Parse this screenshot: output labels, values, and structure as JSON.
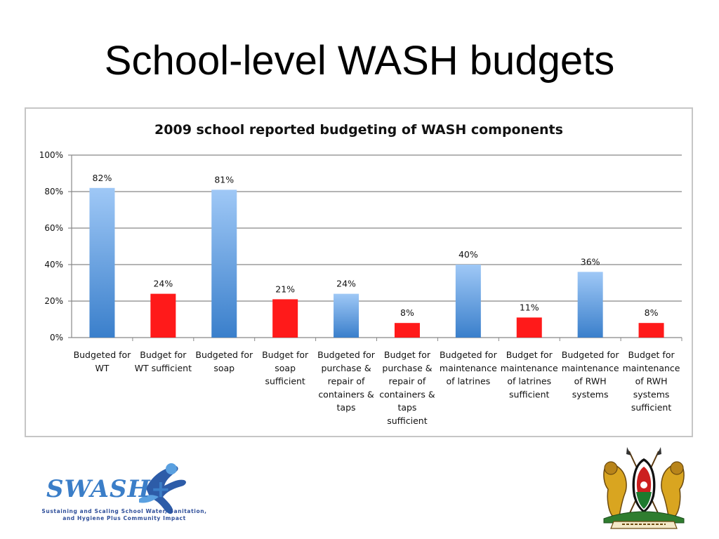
{
  "slide": {
    "title": "School-level WASH budgets"
  },
  "chart_data": {
    "type": "bar",
    "title": "2009 school reported budgeting of WASH components",
    "categories": [
      "Budgeted for WT",
      "Budget for WT sufficient",
      "Budgeted for soap",
      "Budget for soap sufficient",
      "Budgeted for purchase & repair of containers & taps",
      "Budget for purchase & repair of containers & taps sufficient",
      "Budgeted for maintenance of latrines",
      "Budget for maintenance of latrines sufficient",
      "Budgeted for maintenance of RWH systems",
      "Budget for maintenance of RWH systems sufficient"
    ],
    "category_lines": [
      [
        "Budgeted for",
        "WT"
      ],
      [
        "Budget for",
        "WT sufficient"
      ],
      [
        "Budgeted for",
        "soap"
      ],
      [
        "Budget for",
        "soap",
        "sufficient"
      ],
      [
        "Budgeted for",
        "purchase &",
        "repair of",
        "containers &",
        "taps"
      ],
      [
        "Budget for",
        "purchase &",
        "repair of",
        "containers &",
        "taps",
        "sufficient"
      ],
      [
        "Budgeted for",
        "maintenance",
        "of latrines"
      ],
      [
        "Budget for",
        "maintenance",
        "of latrines",
        "sufficient"
      ],
      [
        "Budgeted for",
        "maintenance",
        "of RWH",
        "systems"
      ],
      [
        "Budget for",
        "maintenance",
        "of RWH",
        "systems",
        "sufficient"
      ]
    ],
    "values": [
      82,
      24,
      81,
      21,
      24,
      8,
      40,
      11,
      36,
      8
    ],
    "value_labels": [
      "82%",
      "24%",
      "81%",
      "21%",
      "24%",
      "8%",
      "40%",
      "11%",
      "36%",
      "8%"
    ],
    "ylim": [
      0,
      100
    ],
    "yticks": [
      0,
      20,
      40,
      60,
      80,
      100
    ],
    "ytick_labels": [
      "0%",
      "20%",
      "40%",
      "60%",
      "80%",
      "100%"
    ],
    "grid": true,
    "legend": "none",
    "colors": {
      "budgeted_top": "#9fc8f6",
      "budgeted_bottom": "#3a7fcb",
      "sufficient": "#ff1a1a",
      "gridline": "#888888"
    }
  },
  "logos": {
    "swash_name": "SWASH+",
    "swash_tagline_line1": "Sustaining and Scaling School Water, Sanitation,",
    "swash_tagline_line2": "and Hygiene Plus Community Impact",
    "kenya_coat_of_arms_icon": "kenya-coat-of-arms-icon"
  }
}
